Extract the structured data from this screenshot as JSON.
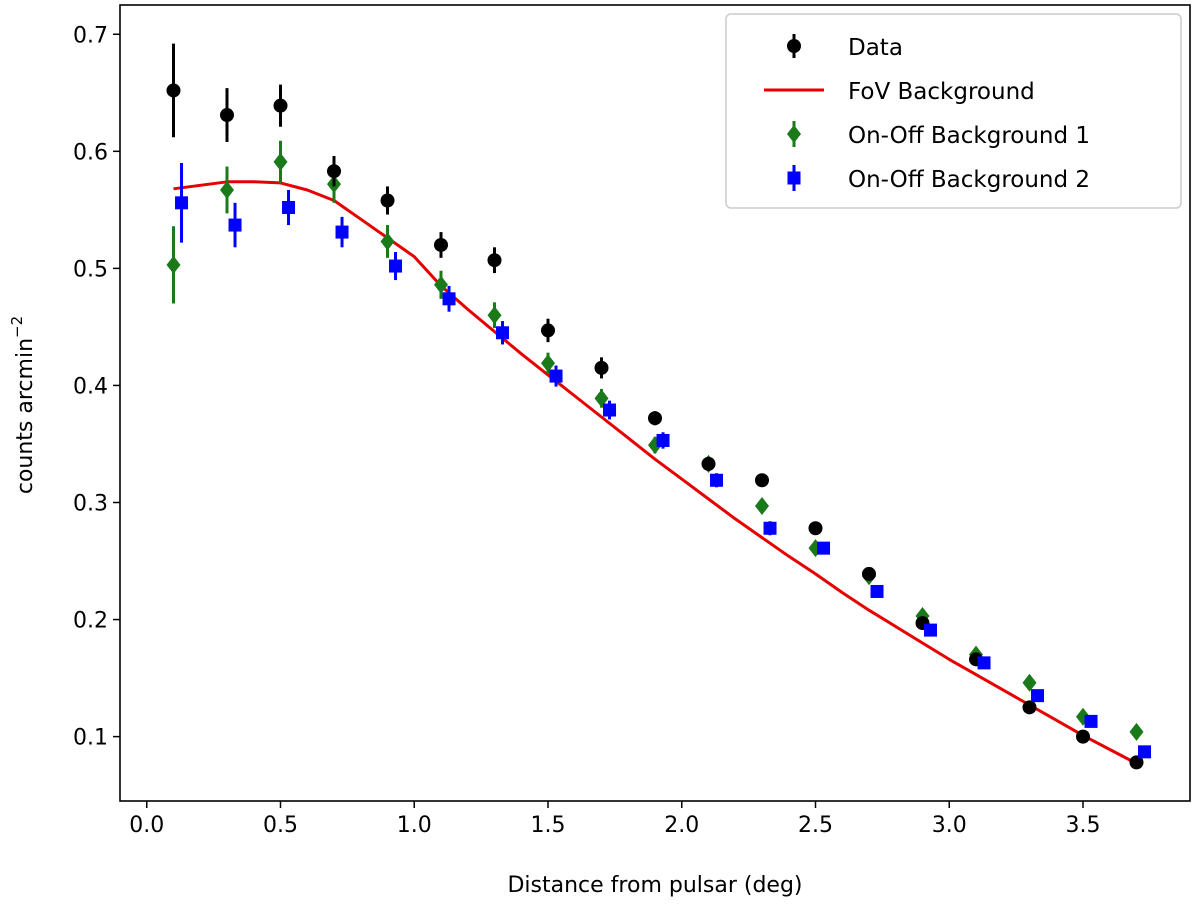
{
  "chart_data": {
    "type": "scatter",
    "title": "",
    "xlabel": "Distance from pulsar (deg)",
    "ylabel_main": "counts  arcmin",
    "ylabel_sup": "−2",
    "xlim": [
      -0.1,
      3.9
    ],
    "ylim": [
      0.045,
      0.725
    ],
    "xticks": [
      0.0,
      0.5,
      1.0,
      1.5,
      2.0,
      2.5,
      3.0,
      3.5
    ],
    "xtick_labels": [
      "0.0",
      "0.5",
      "1.0",
      "1.5",
      "2.0",
      "2.5",
      "3.0",
      "3.5"
    ],
    "yticks": [
      0.1,
      0.2,
      0.3,
      0.4,
      0.5,
      0.6,
      0.7
    ],
    "ytick_labels": [
      "0.1",
      "0.2",
      "0.3",
      "0.4",
      "0.5",
      "0.6",
      "0.7"
    ],
    "legend_position": "top-right",
    "series": [
      {
        "name": "Data",
        "marker": "circle",
        "color": "#000000",
        "x": [
          0.1,
          0.3,
          0.5,
          0.7,
          0.9,
          1.1,
          1.3,
          1.5,
          1.7,
          1.9,
          2.1,
          2.3,
          2.5,
          2.7,
          2.9,
          3.1,
          3.3,
          3.5,
          3.7
        ],
        "y": [
          0.652,
          0.631,
          0.639,
          0.583,
          0.558,
          0.52,
          0.507,
          0.447,
          0.415,
          0.372,
          0.333,
          0.319,
          0.278,
          0.239,
          0.197,
          0.166,
          0.125,
          0.1,
          0.078
        ],
        "yerr": [
          0.04,
          0.023,
          0.018,
          0.013,
          0.012,
          0.011,
          0.011,
          0.01,
          0.009,
          0.006,
          0.006,
          0.005,
          0.005,
          0.005,
          0.005,
          0.005,
          0.005,
          0.005,
          0.004
        ]
      },
      {
        "name": "On-Off Background 1",
        "marker": "diamond",
        "color": "#1a7a1a",
        "x": [
          0.1,
          0.3,
          0.5,
          0.7,
          0.9,
          1.1,
          1.3,
          1.5,
          1.7,
          1.9,
          2.1,
          2.3,
          2.5,
          2.7,
          2.9,
          3.1,
          3.3,
          3.5,
          3.7
        ],
        "y": [
          0.503,
          0.567,
          0.591,
          0.572,
          0.523,
          0.486,
          0.46,
          0.419,
          0.389,
          0.349,
          0.333,
          0.297,
          0.261,
          0.237,
          0.203,
          0.17,
          0.146,
          0.117,
          0.104
        ],
        "yerr": [
          0.033,
          0.02,
          0.018,
          0.016,
          0.014,
          0.012,
          0.011,
          0.009,
          0.008,
          0.007,
          0.006,
          0.006,
          0.005,
          0.005,
          0.005,
          0.005,
          0.005,
          0.005,
          0.004
        ]
      },
      {
        "name": "On-Off Background 2",
        "marker": "square",
        "color": "#0000ff",
        "x": [
          0.13,
          0.33,
          0.53,
          0.73,
          0.93,
          1.13,
          1.33,
          1.53,
          1.73,
          1.93,
          2.13,
          2.33,
          2.53,
          2.73,
          2.93,
          3.13,
          3.33,
          3.53,
          3.73
        ],
        "y": [
          0.556,
          0.537,
          0.552,
          0.531,
          0.502,
          0.474,
          0.445,
          0.408,
          0.379,
          0.353,
          0.319,
          0.278,
          0.261,
          0.224,
          0.191,
          0.163,
          0.135,
          0.113,
          0.087
        ],
        "yerr": [
          0.034,
          0.019,
          0.015,
          0.013,
          0.012,
          0.011,
          0.01,
          0.009,
          0.008,
          0.007,
          0.006,
          0.006,
          0.005,
          0.005,
          0.005,
          0.005,
          0.005,
          0.004,
          0.004
        ]
      },
      {
        "name": "FoV Background",
        "marker": "line",
        "color": "#e60000",
        "x": [
          0.1,
          0.2,
          0.3,
          0.4,
          0.5,
          0.6,
          0.7,
          0.8,
          0.9,
          1.0,
          1.1,
          1.2,
          1.3,
          1.4,
          1.5,
          1.6,
          1.7,
          1.8,
          1.9,
          2.0,
          2.1,
          2.2,
          2.3,
          2.4,
          2.5,
          2.6,
          2.7,
          2.8,
          2.9,
          3.0,
          3.1,
          3.2,
          3.3,
          3.4,
          3.5,
          3.6,
          3.7
        ],
        "y": [
          0.568,
          0.571,
          0.574,
          0.574,
          0.573,
          0.567,
          0.558,
          0.542,
          0.526,
          0.51,
          0.485,
          0.465,
          0.446,
          0.427,
          0.409,
          0.391,
          0.373,
          0.355,
          0.337,
          0.32,
          0.303,
          0.286,
          0.27,
          0.254,
          0.239,
          0.223,
          0.208,
          0.194,
          0.18,
          0.166,
          0.153,
          0.14,
          0.127,
          0.114,
          0.101,
          0.089,
          0.077
        ]
      }
    ]
  }
}
